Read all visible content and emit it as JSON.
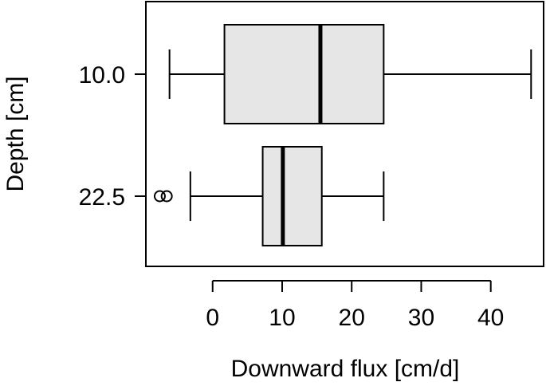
{
  "chart_data": {
    "type": "boxplot",
    "orientation": "horizontal",
    "xlabel": "Downward flux [cm/d]",
    "ylabel": "Depth [cm]",
    "xlim": [
      -9.6,
      47.6
    ],
    "xticks": [
      0,
      10,
      20,
      30,
      40
    ],
    "xtick_labels": [
      "0",
      "10",
      "20",
      "30",
      "40"
    ],
    "categories": [
      "10.0",
      "22.5"
    ],
    "boxes": [
      {
        "category": "10.0",
        "whisker_low": -6.2,
        "q1": 1.7,
        "median": 15.5,
        "q3": 24.6,
        "whisker_high": 45.8,
        "outliers": []
      },
      {
        "category": "22.5",
        "whisker_low": -3.2,
        "q1": 7.2,
        "median": 10.1,
        "q3": 15.7,
        "whisker_high": 24.6,
        "outliers": [
          -7.6,
          -6.6
        ]
      }
    ],
    "box_fill": "#e6e6e6",
    "line_color": "#000000",
    "grid": false,
    "legend": "none"
  }
}
